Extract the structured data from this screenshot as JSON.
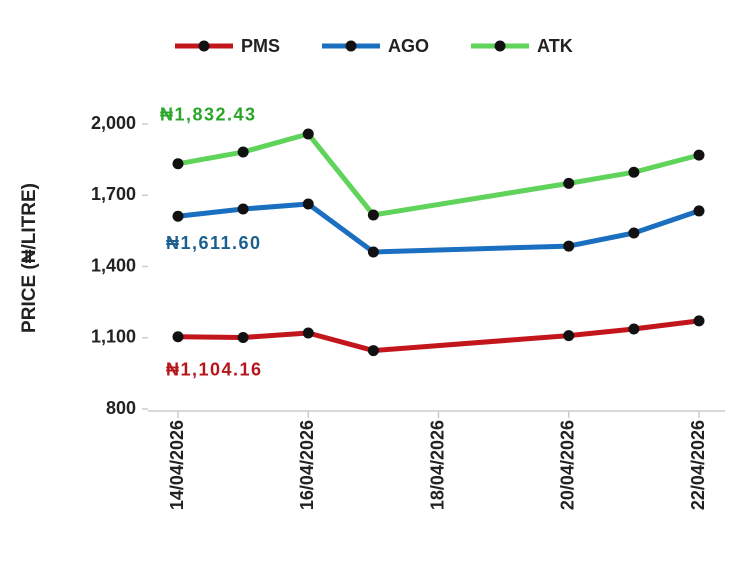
{
  "chart_data": {
    "type": "line",
    "ylabel": "PRICE (₦/LITRE)",
    "x": [
      "14/04/2026",
      "15/04/2026",
      "16/04/2026",
      "17/04/2026",
      "20/04/2026",
      "21/04/2026",
      "22/04/2026"
    ],
    "xlim": [
      "14/04/2026",
      "22/04/2026"
    ],
    "xticks": [
      "14/04/2026",
      "16/04/2026",
      "18/04/2026",
      "20/04/2026",
      "22/04/2026"
    ],
    "ylim": [
      800,
      2000
    ],
    "yticks": [
      {
        "value": 800,
        "label": "800"
      },
      {
        "value": 1100,
        "label": "1,100"
      },
      {
        "value": 1400,
        "label": "1,400"
      },
      {
        "value": 1700,
        "label": "1,700"
      },
      {
        "value": 2000,
        "label": "2,000"
      }
    ],
    "legend": "top",
    "series": [
      {
        "name": "PMS",
        "color": "#c3161c",
        "values": [
          1104.16,
          1101,
          1120,
          1046,
          1109,
          1137,
          1171
        ]
      },
      {
        "name": "AGO",
        "color": "#1b6fc0",
        "values": [
          1611.6,
          1642,
          1663,
          1461,
          1486,
          1541,
          1634
        ]
      },
      {
        "name": "ATK",
        "color": "#5fd35a",
        "values": [
          1832.43,
          1882,
          1958,
          1617,
          1750,
          1797,
          1869
        ]
      }
    ],
    "annotations": [
      {
        "text": "₦1,832.43",
        "series": 2,
        "point": 0,
        "color": "#2aa52a"
      },
      {
        "text": "₦1,611.60",
        "series": 1,
        "point": 0,
        "color": "#1b5f8f"
      },
      {
        "text": "₦1,104.16",
        "series": 0,
        "point": 0,
        "color": "#b5161c"
      }
    ]
  }
}
